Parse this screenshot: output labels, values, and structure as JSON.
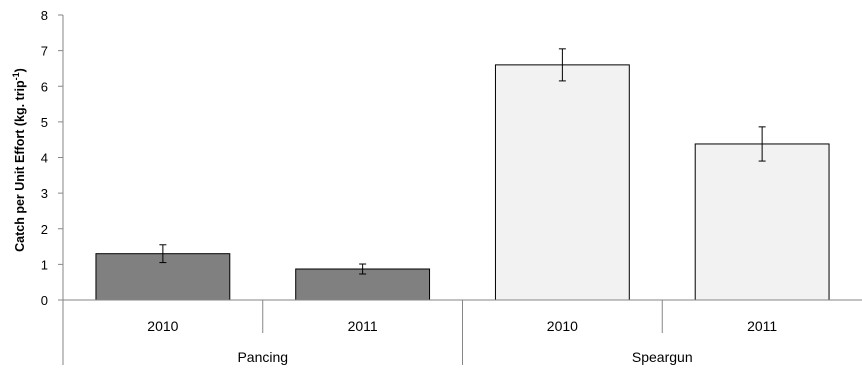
{
  "chart_data": {
    "type": "bar",
    "ylabel": "Catch per Unit Effort (kg. trip",
    "ylabel_sup": "-1",
    "ylabel_end": ")",
    "ylim": [
      0,
      8
    ],
    "yticks": [
      0,
      1,
      2,
      3,
      4,
      5,
      6,
      7,
      8
    ],
    "grid": false,
    "groups": [
      {
        "name": "Pancing",
        "color": "#808080"
      },
      {
        "name": "Speargun",
        "color": "#f2f2f2"
      }
    ],
    "categories": [
      "2010",
      "2011",
      "2010",
      "2011"
    ],
    "bars": [
      {
        "group": "Pancing",
        "category": "2010",
        "value": 1.3,
        "error": 0.25
      },
      {
        "group": "Pancing",
        "category": "2011",
        "value": 0.87,
        "error": 0.14
      },
      {
        "group": "Speargun",
        "category": "2010",
        "value": 6.6,
        "error": 0.45
      },
      {
        "group": "Speargun",
        "category": "2011",
        "value": 4.38,
        "error": 0.48
      }
    ]
  }
}
